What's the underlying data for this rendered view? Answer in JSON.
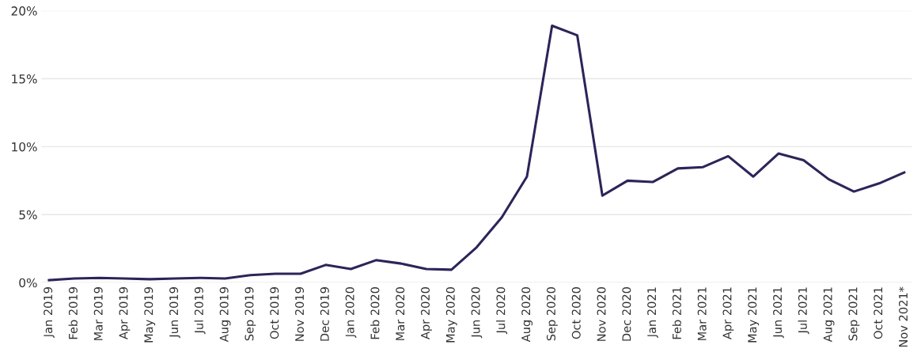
{
  "chart_data": {
    "type": "line",
    "categories": [
      "Jan 2019",
      "Feb 2019",
      "Mar 2019",
      "Apr 2019",
      "May 2019",
      "Jun 2019",
      "Jul 2019",
      "Aug 2019",
      "Sep 2019",
      "Oct 2019",
      "Nov 2019",
      "Dec 2019",
      "Jan 2020",
      "Feb 2020",
      "Mar 2020",
      "Apr 2020",
      "May 2020",
      "Jun 2020",
      "Jul 2020",
      "Aug 2020",
      "Sep 2020",
      "Oct 2020",
      "Nov 2020",
      "Dec 2020",
      "Jan 2021",
      "Feb 2021",
      "Mar 2021",
      "Apr 2021",
      "May 2021",
      "Jun 2021",
      "Jul 2021",
      "Aug 2021",
      "Sep 2021",
      "Oct 2021",
      "Nov 2021*"
    ],
    "series": [
      {
        "color": "#2e2459",
        "values": [
          0.18,
          0.3,
          0.35,
          0.3,
          0.25,
          0.3,
          0.35,
          0.3,
          0.55,
          0.65,
          0.65,
          1.3,
          1.0,
          1.65,
          1.4,
          1.0,
          0.95,
          2.6,
          4.8,
          7.8,
          18.9,
          18.2,
          6.4,
          7.5,
          7.4,
          8.4,
          8.5,
          9.3,
          7.8,
          9.5,
          9.0,
          7.6,
          6.7,
          7.3,
          8.1
        ]
      }
    ],
    "ylim": [
      0,
      20
    ],
    "yticks": [
      {
        "value": 0,
        "label": "0%"
      },
      {
        "value": 5,
        "label": "5%"
      },
      {
        "value": 10,
        "label": "10%"
      },
      {
        "value": 15,
        "label": "15%"
      },
      {
        "value": 20,
        "label": "20%"
      }
    ],
    "grid": "y",
    "marker": "none",
    "line_style": "solid"
  }
}
